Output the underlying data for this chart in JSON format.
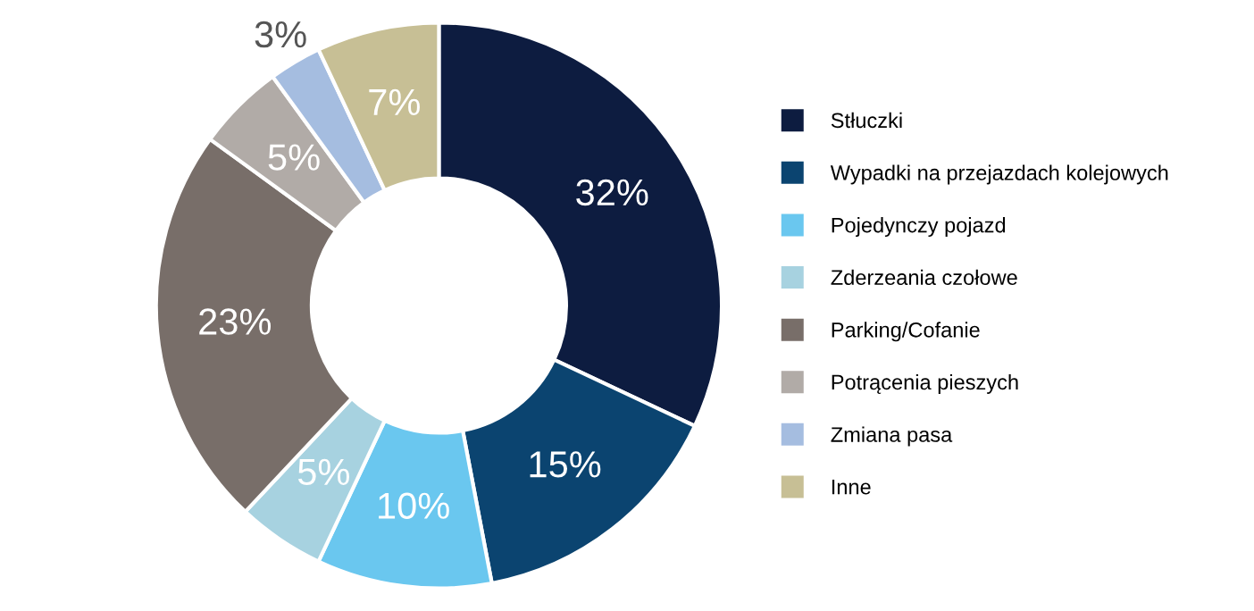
{
  "chart_data": {
    "type": "donut",
    "categories": [
      "Stłuczki",
      "Wypadki na przejazdach kolejowych",
      "Pojedynczy pojazd",
      "Zderzeania czołowe",
      "Parking/Cofanie",
      "Potrącenia pieszych",
      "Zmiana pasa",
      "Inne"
    ],
    "values": [
      32,
      15,
      10,
      5,
      23,
      5,
      3,
      7
    ],
    "colors": [
      "#0d1c40",
      "#0b4470",
      "#6ac7ef",
      "#a7d2e0",
      "#786e69",
      "#b1aba7",
      "#a5bde0",
      "#c7bf95"
    ],
    "value_labels": [
      "32%",
      "15%",
      "10%",
      "5%",
      "23%",
      "5%",
      "3%",
      "7%"
    ],
    "legend": "right"
  }
}
